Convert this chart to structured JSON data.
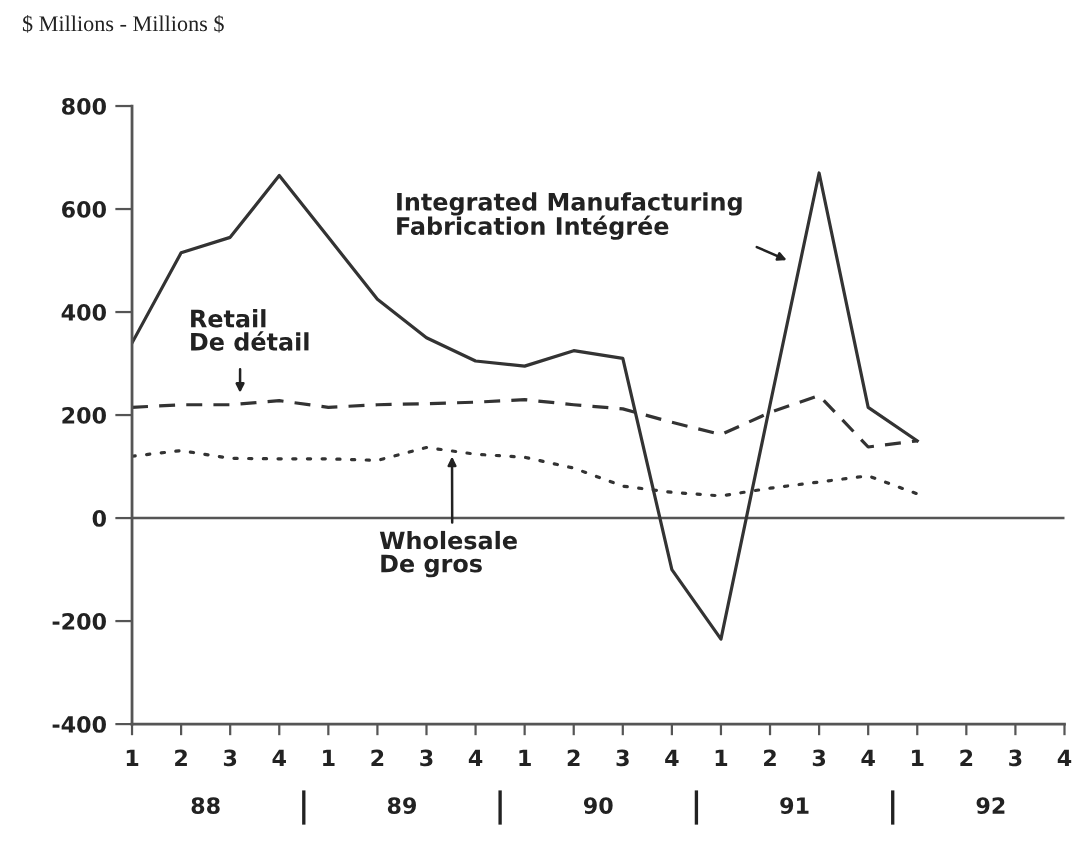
{
  "chart_data": {
    "type": "line",
    "ylabel": "$ Millions - Millions $",
    "categories": [
      "1",
      "2",
      "3",
      "4",
      "1",
      "2",
      "3",
      "4",
      "1",
      "2",
      "3",
      "4",
      "1",
      "2",
      "3",
      "4",
      "1",
      "2",
      "3",
      "4"
    ],
    "annotations": [
      "88",
      "89",
      "90",
      "91",
      "92"
    ],
    "ylim": [
      -400,
      800
    ],
    "yticks": [
      -400,
      -200,
      0,
      200,
      400,
      600,
      800
    ],
    "ref_lines": [
      {
        "axis": "y",
        "value": 0,
        "color": "#555555"
      }
    ],
    "series": [
      {
        "name": "Integrated Manufacturing\nFabrication Intégrée",
        "color": "#333333",
        "line_style": "solid",
        "values": [
          340,
          515,
          545,
          665,
          545,
          425,
          350,
          305,
          295,
          325,
          310,
          -100,
          -235,
          220,
          670,
          215,
          150,
          null,
          null,
          null
        ]
      },
      {
        "name": "Retail\nDe détail",
        "color": "#333333",
        "line_style": "dashed",
        "values": [
          215,
          220,
          220,
          228,
          215,
          220,
          222,
          225,
          230,
          220,
          212,
          186,
          162,
          205,
          238,
          138,
          150,
          null,
          null,
          null
        ]
      },
      {
        "name": "Wholesale\nDe gros",
        "color": "#333333",
        "line_style": "dotted",
        "values": [
          120,
          131,
          116,
          115,
          115,
          112,
          137,
          124,
          118,
          97,
          62,
          50,
          43,
          58,
          70,
          82,
          47,
          null,
          null,
          null
        ]
      }
    ]
  }
}
